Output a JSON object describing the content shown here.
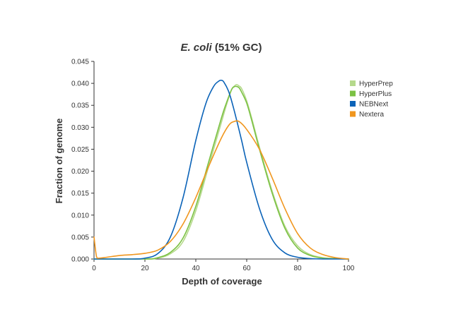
{
  "chart_data": {
    "type": "line",
    "title": {
      "italic": "E. coli",
      "normal": " (51% GC)"
    },
    "xlabel": "Depth of coverage",
    "ylabel": "Fraction of genome",
    "xlim": [
      0,
      100
    ],
    "ylim": [
      0,
      0.045
    ],
    "xticks": [
      0,
      20,
      40,
      60,
      80,
      100
    ],
    "xtick_labels": [
      "0",
      "20",
      "40",
      "60",
      "80",
      "100"
    ],
    "yticks": [
      0,
      0.005,
      0.01,
      0.015,
      0.02,
      0.025,
      0.03,
      0.035,
      0.04,
      0.045
    ],
    "ytick_labels": [
      "0.000",
      "0.005",
      "0.010",
      "0.015",
      "0.020",
      "0.025",
      "0.030",
      "0.035",
      "0.040",
      "0.045"
    ],
    "grid": false,
    "legend_position": "top-right",
    "series": [
      {
        "name": "HyperPrep",
        "color": "#b5d98c",
        "x": [
          0,
          20,
          25,
          30,
          35,
          40,
          45,
          50,
          52,
          54,
          55,
          56,
          57,
          58,
          60,
          62,
          65,
          70,
          75,
          80,
          85,
          90,
          95,
          100
        ],
        "y": [
          0,
          0,
          0.0002,
          0.0012,
          0.004,
          0.011,
          0.021,
          0.031,
          0.035,
          0.0385,
          0.0393,
          0.0397,
          0.0394,
          0.0388,
          0.036,
          0.032,
          0.0255,
          0.0155,
          0.0075,
          0.003,
          0.001,
          0.0003,
          0.0001,
          0
        ]
      },
      {
        "name": "HyperPlus",
        "color": "#7bc143",
        "x": [
          0,
          20,
          25,
          30,
          35,
          40,
          45,
          50,
          52,
          54,
          55,
          56,
          57,
          58,
          60,
          62,
          65,
          70,
          75,
          80,
          85,
          90,
          95,
          100
        ],
        "y": [
          0,
          0,
          0.0003,
          0.0015,
          0.0048,
          0.012,
          0.022,
          0.032,
          0.0355,
          0.0385,
          0.0392,
          0.0393,
          0.039,
          0.038,
          0.0355,
          0.0315,
          0.025,
          0.015,
          0.007,
          0.0025,
          0.0008,
          0.0002,
          0.0001,
          0
        ]
      },
      {
        "name": "NEBNext",
        "color": "#0b63b8",
        "x": [
          0,
          15,
          20,
          25,
          30,
          35,
          40,
          44,
          47,
          49,
          50,
          51,
          53,
          55,
          58,
          60,
          65,
          70,
          75,
          80,
          85,
          90,
          95,
          100
        ],
        "y": [
          0,
          0,
          0.0002,
          0.0012,
          0.005,
          0.014,
          0.027,
          0.0355,
          0.0393,
          0.0405,
          0.0407,
          0.0403,
          0.038,
          0.034,
          0.027,
          0.022,
          0.0115,
          0.0045,
          0.0014,
          0.0004,
          0.0001,
          0,
          0,
          0
        ]
      },
      {
        "name": "Nextera",
        "color": "#f0961e",
        "x": [
          0,
          1,
          2,
          5,
          10,
          15,
          20,
          25,
          30,
          35,
          40,
          45,
          50,
          53,
          55,
          57,
          60,
          65,
          70,
          75,
          80,
          85,
          90,
          95,
          100
        ],
        "y": [
          0.005,
          0.0005,
          0.0002,
          0.0004,
          0.0008,
          0.001,
          0.0013,
          0.002,
          0.004,
          0.008,
          0.014,
          0.021,
          0.0275,
          0.0305,
          0.0313,
          0.0313,
          0.0295,
          0.025,
          0.0185,
          0.0115,
          0.0058,
          0.0025,
          0.001,
          0.0003,
          0
        ]
      }
    ]
  }
}
